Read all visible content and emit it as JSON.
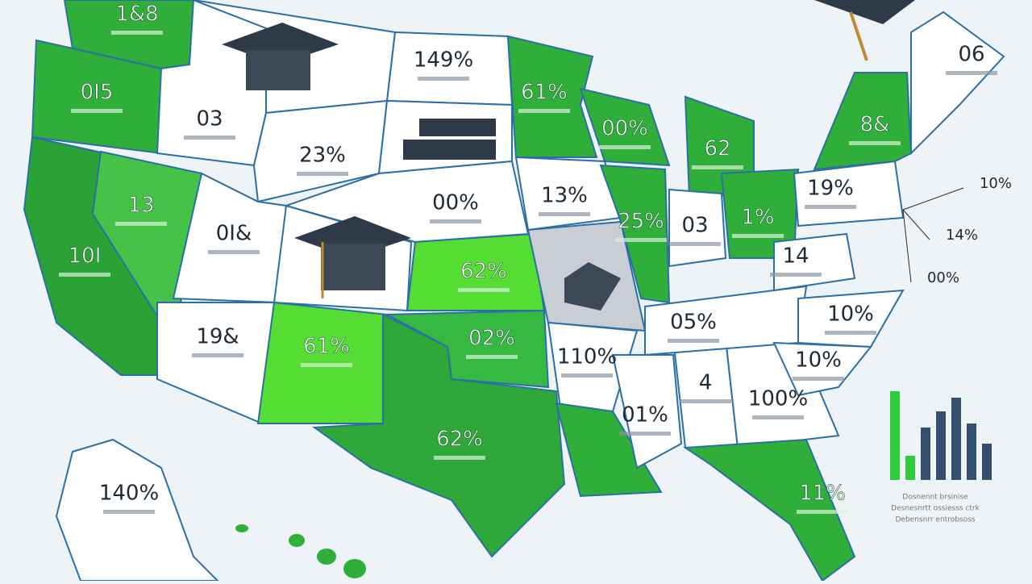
{
  "regions": [
    {
      "label": "1&8",
      "color": "#2fae3a"
    },
    {
      "label": "0I5",
      "color": "#2fae3a"
    },
    {
      "label": "10I",
      "color": "#2aa236"
    },
    {
      "label": "13",
      "color": "#45c247"
    },
    {
      "label": "03",
      "color": "#ffffff"
    },
    {
      "label": null,
      "color": "#ffffff"
    },
    {
      "label": "23%",
      "color": "#ffffff"
    },
    {
      "label": "0I&",
      "color": "#ffffff"
    },
    {
      "label": "19&",
      "color": "#ffffff"
    },
    {
      "label": null,
      "color": "#ffffff"
    },
    {
      "label": "61%",
      "color": "#55dd33"
    },
    {
      "label": "149%",
      "color": "#ffffff"
    },
    {
      "label": null,
      "color": "#ffffff"
    },
    {
      "label": "00%",
      "color": "#ffffff"
    },
    {
      "label": "62%",
      "color": "#55dd33"
    },
    {
      "label": "02%",
      "color": "#35b941"
    },
    {
      "label": "62%",
      "color": "#2fa83a"
    },
    {
      "label": "61%",
      "color": "#2fae3a"
    },
    {
      "label": "13%",
      "color": "#ffffff"
    },
    {
      "label": null,
      "color": "#c9ced4"
    },
    {
      "label": "00%",
      "color": "#2fae3a"
    },
    {
      "label": "62",
      "color": "#2fae3a"
    },
    {
      "label": "25%",
      "color": "#2fae3a"
    },
    {
      "label": "03",
      "color": "#ffffff"
    },
    {
      "label": "1%",
      "color": "#2fae3a"
    },
    {
      "label": "110%",
      "color": "#ffffff"
    },
    {
      "label": null,
      "color": "#2fae3a"
    },
    {
      "label": "01%",
      "color": "#ffffff"
    },
    {
      "label": "4",
      "color": "#ffffff"
    },
    {
      "label": "100%",
      "color": "#ffffff"
    },
    {
      "label": "11%",
      "color": "#2fae3a"
    },
    {
      "label": "05%",
      "color": "#ffffff"
    },
    {
      "label": "14",
      "color": "#ffffff"
    },
    {
      "label": "10%",
      "color": "#ffffff"
    },
    {
      "label": "10%",
      "color": "#ffffff"
    },
    {
      "label": "19%",
      "color": "#ffffff"
    },
    {
      "label": "8&",
      "color": "#2fae3a"
    },
    {
      "label": "06",
      "color": "#ffffff"
    },
    {
      "label": "140%",
      "color": "#ffffff"
    }
  ],
  "callouts": [
    "10%",
    "14%",
    "00%"
  ],
  "footnote": [
    "Dosnennt brsinise",
    "Desnesnrtt ossiesss ctrk",
    "Debensnrr entrobsoss"
  ],
  "legend_chart": {
    "type": "bar",
    "values": [
      110,
      30,
      65,
      85,
      102,
      70,
      45
    ],
    "colors": [
      "#2ecc3a",
      "#2ecc3a",
      "#34506e",
      "#34506e",
      "#34506e",
      "#34506e",
      "#34506e"
    ]
  }
}
